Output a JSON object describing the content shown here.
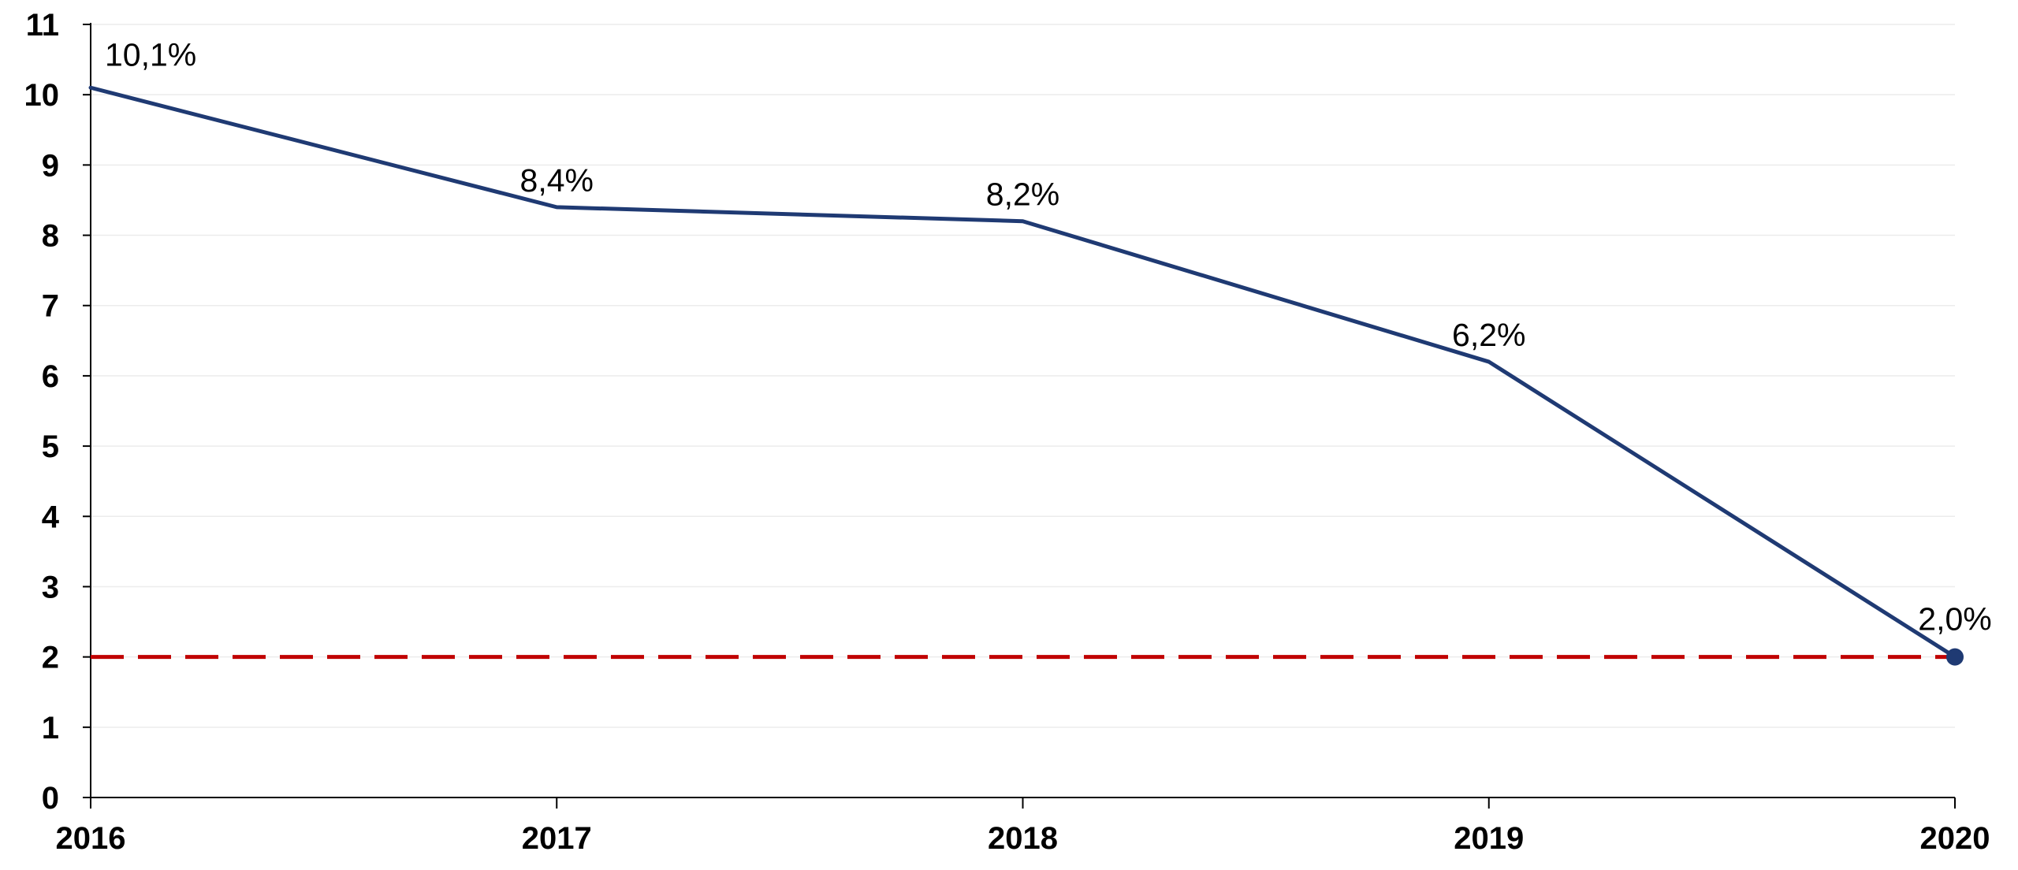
{
  "chart_data": {
    "type": "line",
    "title": "",
    "xlabel": "",
    "ylabel": "",
    "x": [
      "2016",
      "2017",
      "2018",
      "2019",
      "2020"
    ],
    "ylim": [
      0,
      11
    ],
    "yticks": [
      0,
      1,
      2,
      3,
      4,
      5,
      6,
      7,
      8,
      9,
      10,
      11
    ],
    "series": [
      {
        "values": [
          10.1,
          8.4,
          8.2,
          6.2,
          2.0
        ],
        "labels": [
          "10,1%",
          "8,4%",
          "8,2%",
          "6,2%",
          "2,0%"
        ],
        "color": "#1f3a73",
        "end_marker": true
      }
    ],
    "reference_line": {
      "y": 2,
      "color": "#c00000",
      "style": "dashed"
    },
    "grid": true,
    "legend": "none"
  }
}
